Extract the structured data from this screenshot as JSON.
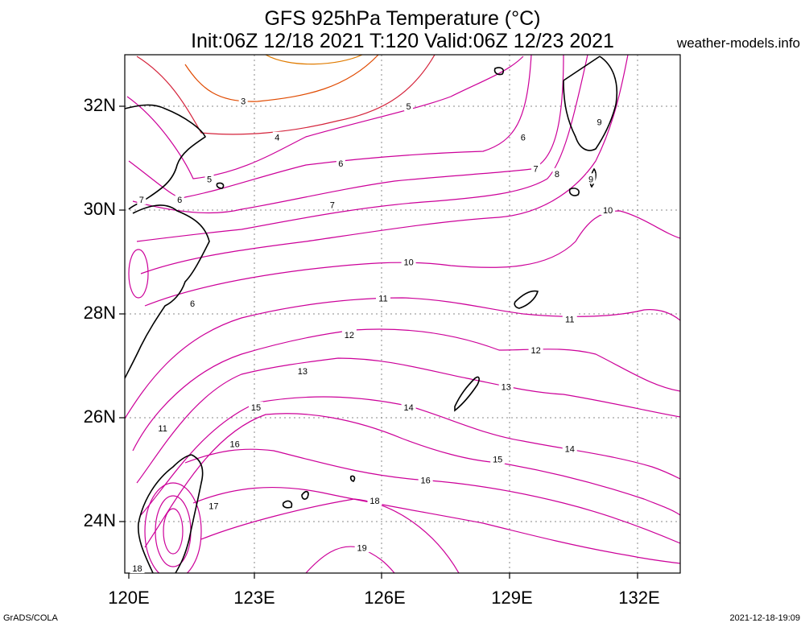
{
  "title": {
    "line1": "GFS 925hPa Temperature (°C)",
    "line2": "Init:06Z 12/18 2021 T:120 Valid:06Z 12/23 2021"
  },
  "site": "weather-models.info",
  "footer": {
    "left": "GrADS/COLA",
    "right": "2021-12-18-19:09"
  },
  "map": {
    "lon_ticks": [
      "120E",
      "123E",
      "126E",
      "129E",
      "132E"
    ],
    "lat_ticks": [
      "32N",
      "30N",
      "28N",
      "26N",
      "24N"
    ],
    "grid": "dotted",
    "colors": {
      "contour": "#cc0099",
      "warm": "#e07b00",
      "coast": "#000000"
    }
  },
  "contour_labels": [
    {
      "t": "3",
      "lon": 122.7,
      "lat": 32.1
    },
    {
      "t": "4",
      "lon": 123.5,
      "lat": 31.4
    },
    {
      "t": "5",
      "lon": 126.6,
      "lat": 32.0
    },
    {
      "t": "5",
      "lon": 121.9,
      "lat": 30.6
    },
    {
      "t": "6",
      "lon": 125.0,
      "lat": 30.9
    },
    {
      "t": "6",
      "lon": 121.2,
      "lat": 30.2
    },
    {
      "t": "6",
      "lon": 129.3,
      "lat": 31.4
    },
    {
      "t": "6",
      "lon": 121.5,
      "lat": 28.2
    },
    {
      "t": "7",
      "lon": 120.3,
      "lat": 30.2
    },
    {
      "t": "7",
      "lon": 124.8,
      "lat": 30.1
    },
    {
      "t": "7",
      "lon": 129.6,
      "lat": 30.8
    },
    {
      "t": "8",
      "lon": 130.1,
      "lat": 30.7
    },
    {
      "t": "9",
      "lon": 131.1,
      "lat": 31.7
    },
    {
      "t": "9",
      "lon": 130.9,
      "lat": 30.6
    },
    {
      "t": "10",
      "lon": 126.6,
      "lat": 29.0
    },
    {
      "t": "10",
      "lon": 131.3,
      "lat": 30.0
    },
    {
      "t": "11",
      "lon": 126.0,
      "lat": 28.3
    },
    {
      "t": "11",
      "lon": 130.4,
      "lat": 27.9
    },
    {
      "t": "11",
      "lon": 120.8,
      "lat": 25.8
    },
    {
      "t": "12",
      "lon": 125.2,
      "lat": 27.6
    },
    {
      "t": "12",
      "lon": 129.6,
      "lat": 27.3
    },
    {
      "t": "13",
      "lon": 124.1,
      "lat": 26.9
    },
    {
      "t": "13",
      "lon": 128.9,
      "lat": 26.6
    },
    {
      "t": "14",
      "lon": 126.6,
      "lat": 26.2
    },
    {
      "t": "14",
      "lon": 130.4,
      "lat": 25.4
    },
    {
      "t": "15",
      "lon": 123.0,
      "lat": 26.2
    },
    {
      "t": "15",
      "lon": 128.7,
      "lat": 25.2
    },
    {
      "t": "16",
      "lon": 122.5,
      "lat": 25.5
    },
    {
      "t": "16",
      "lon": 127.0,
      "lat": 24.8
    },
    {
      "t": "17",
      "lon": 122.0,
      "lat": 24.3
    },
    {
      "t": "18",
      "lon": 125.8,
      "lat": 24.4
    },
    {
      "t": "18",
      "lon": 120.2,
      "lat": 23.1
    },
    {
      "t": "19",
      "lon": 125.5,
      "lat": 23.5
    }
  ]
}
